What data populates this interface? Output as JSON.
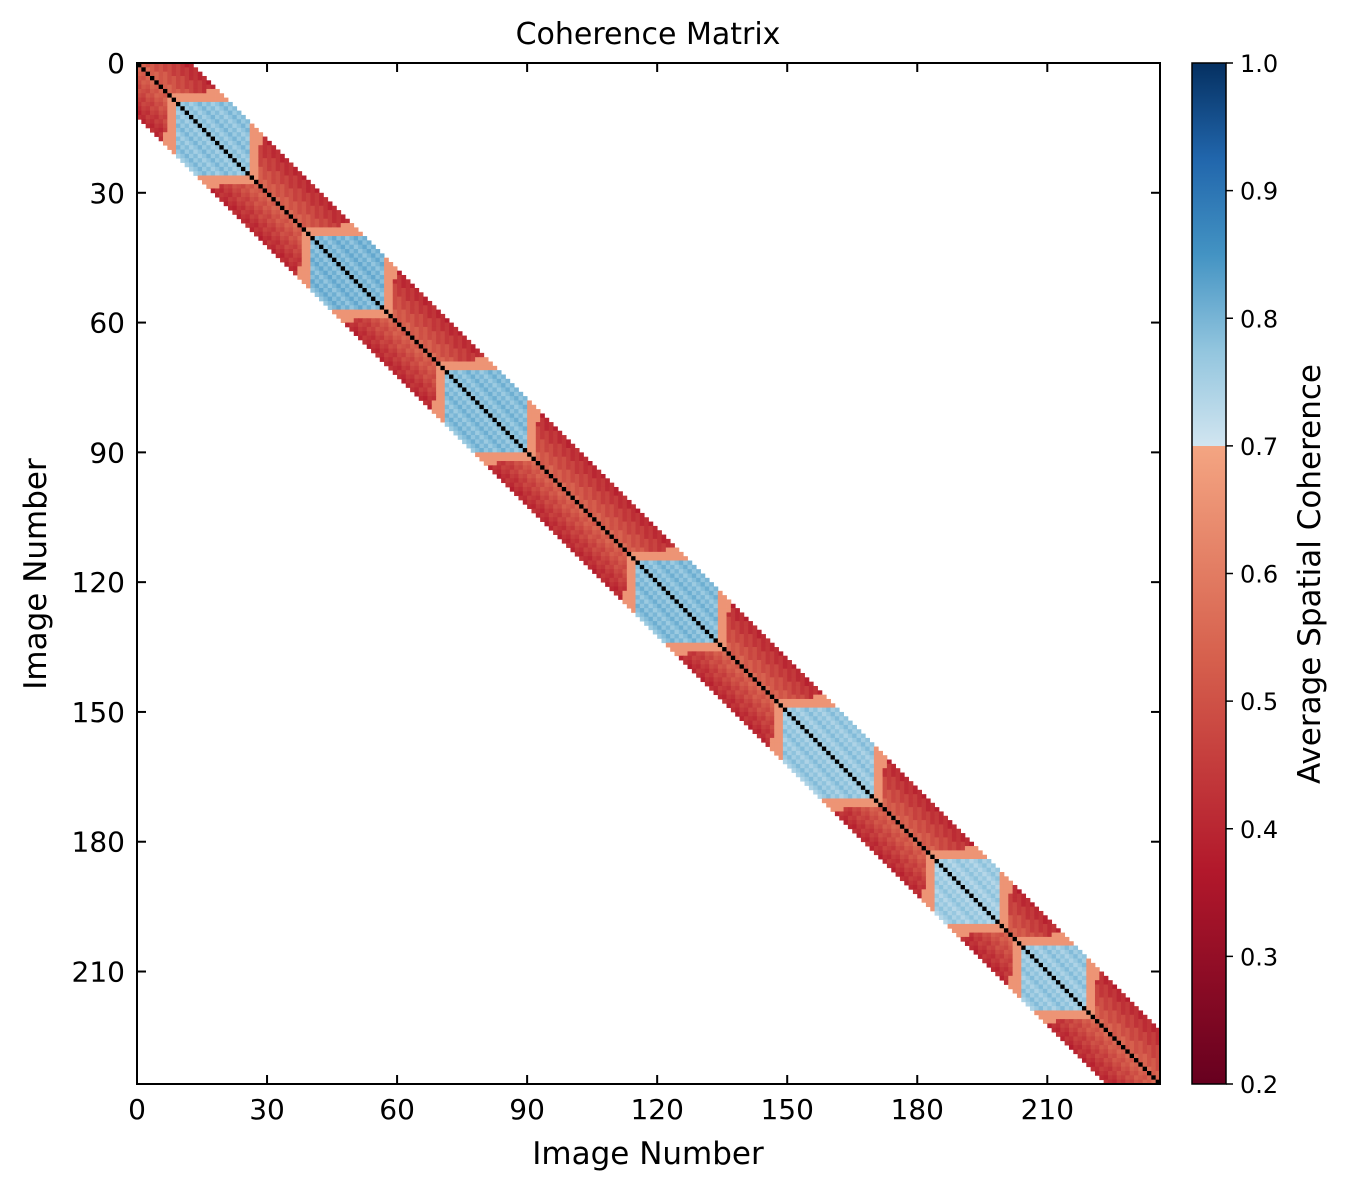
{
  "chart_data": {
    "type": "heatmap",
    "title": "Coherence Matrix",
    "xlabel": "Image Number",
    "ylabel": "Image Number",
    "n_images": 236,
    "xlim": [
      0,
      236
    ],
    "ylim": [
      236,
      0
    ],
    "xticks": [
      "0",
      "30",
      "60",
      "90",
      "120",
      "150",
      "180",
      "210"
    ],
    "yticks": [
      "0",
      "30",
      "60",
      "90",
      "120",
      "150",
      "180",
      "210"
    ],
    "band_half_width": 12,
    "diagonal_value": 1.0,
    "high_coherence_blocks": [
      {
        "start": 10,
        "end": 24,
        "value": 0.8
      },
      {
        "start": 41,
        "end": 55,
        "value": 0.82
      },
      {
        "start": 72,
        "end": 88,
        "value": 0.81
      },
      {
        "start": 116,
        "end": 132,
        "value": 0.81
      },
      {
        "start": 150,
        "end": 168,
        "value": 0.79
      },
      {
        "start": 185,
        "end": 197,
        "value": 0.78
      },
      {
        "start": 205,
        "end": 217,
        "value": 0.79
      }
    ],
    "colorbar": {
      "label": "Average Spatial Coherence",
      "vmin": 0.2,
      "vmax": 1.0,
      "ticks": [
        "0.2",
        "0.3",
        "0.4",
        "0.5",
        "0.6",
        "0.7",
        "0.8",
        "0.9",
        "1.0"
      ],
      "threshold": 0.7,
      "colors_below": [
        "#67001f",
        "#b2182b",
        "#d6604d",
        "#f4a582"
      ],
      "colors_above": [
        "#d1e5f0",
        "#92c5de",
        "#4393c3",
        "#2166ac",
        "#053061"
      ]
    }
  }
}
